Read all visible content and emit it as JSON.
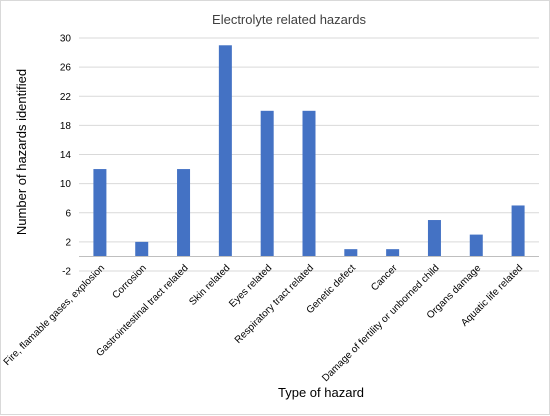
{
  "chart_data": {
    "type": "bar",
    "title": "Electrolyte related hazards",
    "xlabel": "Type of hazard",
    "ylabel": "Number of hazards identified",
    "ylim": [
      -2,
      30
    ],
    "yticks": [
      -2,
      2,
      6,
      10,
      14,
      18,
      22,
      26,
      30
    ],
    "grid": true,
    "legend": "none",
    "bar_color": "#4472c4",
    "grid_color": "#d9d9d9",
    "categories": [
      "Fire, flamable gases, explosion",
      "Corrosion",
      "Gastrointestinal tract related",
      "Skin related",
      "Eyes related",
      "Respiratory tract related",
      "Genetic defect",
      "Cancer",
      "Damage of fertility or unborned child",
      "Organs damage",
      "Aquatic life related"
    ],
    "values": [
      12,
      2,
      12,
      29,
      20,
      20,
      1,
      1,
      5,
      3,
      7
    ]
  }
}
